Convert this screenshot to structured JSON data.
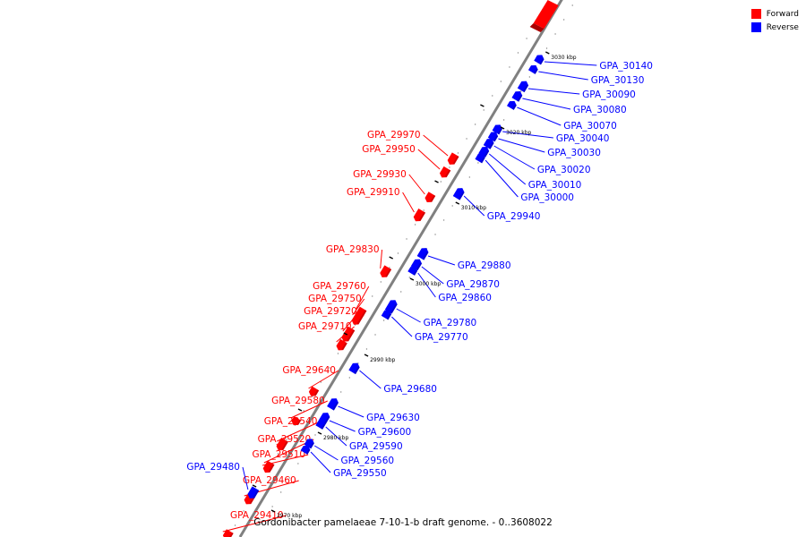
{
  "title": "Gordonibacter pamelaeae 7-10-1-b draft genome. - 0..3608022",
  "legend": [
    {
      "label": "Forward",
      "color": "#ff0000"
    },
    {
      "label": "Reverse",
      "color": "#0000ff"
    }
  ],
  "colors": {
    "forward": "#ff0000",
    "reverse": "#0000ff",
    "axis": "#808080",
    "tick": "#000000"
  },
  "scale_ticks": [
    {
      "label": "3030 kbp"
    },
    {
      "label": "3020 kbp"
    },
    {
      "label": "3010 kbp"
    },
    {
      "label": "3000 kbp"
    },
    {
      "label": "2990 kbp"
    },
    {
      "label": "2980 kbp"
    },
    {
      "label": "2970 kbp"
    }
  ],
  "forward_genes": [
    {
      "label": "GPA_29970"
    },
    {
      "label": "GPA_29950"
    },
    {
      "label": "GPA_29930"
    },
    {
      "label": "GPA_29910"
    },
    {
      "label": "GPA_29830"
    },
    {
      "label": "GPA_29760"
    },
    {
      "label": "GPA_29750"
    },
    {
      "label": "GPA_29720"
    },
    {
      "label": "GPA_29710"
    },
    {
      "label": "GPA_29640"
    },
    {
      "label": "GPA_29580"
    },
    {
      "label": "GPA_29540"
    },
    {
      "label": "GPA_29520"
    },
    {
      "label": "GPA_29510"
    },
    {
      "label": "GPA_29460"
    },
    {
      "label": "GPA_29410"
    }
  ],
  "reverse_genes": [
    {
      "label": "GPA_29480"
    },
    {
      "label": "GPA_30140"
    },
    {
      "label": "GPA_30130"
    },
    {
      "label": "GPA_30090"
    },
    {
      "label": "GPA_30080"
    },
    {
      "label": "GPA_30070"
    },
    {
      "label": "GPA_30040"
    },
    {
      "label": "GPA_30030"
    },
    {
      "label": "GPA_30020"
    },
    {
      "label": "GPA_30010"
    },
    {
      "label": "GPA_30000"
    },
    {
      "label": "GPA_29940"
    },
    {
      "label": "GPA_29880"
    },
    {
      "label": "GPA_29870"
    },
    {
      "label": "GPA_29860"
    },
    {
      "label": "GPA_29780"
    },
    {
      "label": "GPA_29770"
    },
    {
      "label": "GPA_29680"
    },
    {
      "label": "GPA_29630"
    },
    {
      "label": "GPA_29600"
    },
    {
      "label": "GPA_29590"
    },
    {
      "label": "GPA_29560"
    },
    {
      "label": "GPA_29550"
    }
  ]
}
